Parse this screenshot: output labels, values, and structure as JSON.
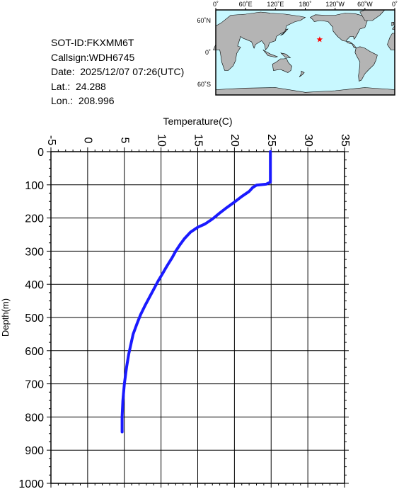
{
  "info": {
    "sot_id": "SOT-ID:FKXMM6T",
    "callsign": "Callsign:WDH6745",
    "date": "Date:  2025/12/07 07:26(UTC)",
    "lat": "Lat.:  24.288",
    "lon": "Lon.:  208.996"
  },
  "map": {
    "lon_labels": [
      "0˚",
      "60˚E",
      "120˚E",
      "180˚",
      "120˚W",
      "60˚W",
      "0˚"
    ],
    "lat_labels": [
      "60˚N",
      "0˚",
      "60˚S"
    ],
    "ocean_color": "#c8f8ff",
    "land_color": "#b4b4b4",
    "marker_color": "#ff0000",
    "marker": {
      "lat": 24.288,
      "lon": 208.996
    }
  },
  "chart_data": {
    "type": "line",
    "title": "",
    "xlabel": "Temperature(C)",
    "ylabel": "Depth(m)",
    "xlim": [
      -5,
      35
    ],
    "ylim": [
      0,
      1000
    ],
    "y_inverted": true,
    "grid": true,
    "x_ticks": [
      "-5",
      "0",
      "5",
      "10",
      "15",
      "20",
      "25",
      "30",
      "35"
    ],
    "y_ticks": [
      "0",
      "100",
      "200",
      "300",
      "400",
      "500",
      "600",
      "700",
      "800",
      "900",
      "1000"
    ],
    "series": [
      {
        "color": "#1a1aff",
        "points": [
          [
            24.9,
            0
          ],
          [
            24.9,
            30
          ],
          [
            24.9,
            60
          ],
          [
            24.9,
            92
          ],
          [
            24.3,
            98
          ],
          [
            23.0,
            101
          ],
          [
            22.5,
            108
          ],
          [
            22.0,
            120
          ],
          [
            21.0,
            135
          ],
          [
            20.0,
            152
          ],
          [
            19.0,
            168
          ],
          [
            18.0,
            185
          ],
          [
            17.0,
            203
          ],
          [
            16.0,
            218
          ],
          [
            15.0,
            228
          ],
          [
            14.0,
            243
          ],
          [
            13.2,
            262
          ],
          [
            12.6,
            280
          ],
          [
            12.0,
            300
          ],
          [
            11.5,
            320
          ],
          [
            10.8,
            345
          ],
          [
            10.2,
            368
          ],
          [
            9.6,
            390
          ],
          [
            9.0,
            415
          ],
          [
            8.4,
            440
          ],
          [
            7.8,
            465
          ],
          [
            7.2,
            492
          ],
          [
            6.7,
            520
          ],
          [
            6.2,
            550
          ],
          [
            5.9,
            580
          ],
          [
            5.6,
            610
          ],
          [
            5.3,
            650
          ],
          [
            5.0,
            700
          ],
          [
            4.8,
            750
          ],
          [
            4.7,
            800
          ],
          [
            4.7,
            845
          ]
        ]
      }
    ]
  }
}
